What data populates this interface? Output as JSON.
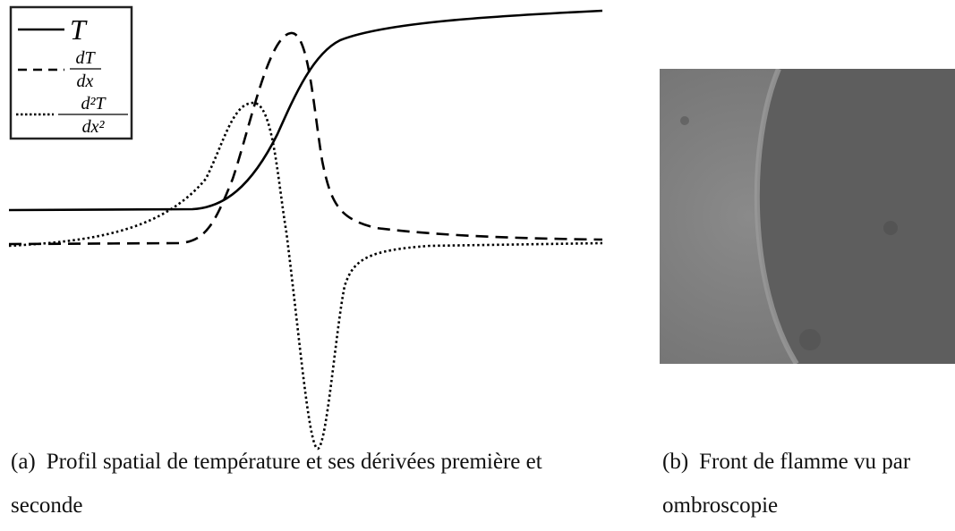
{
  "figure_a": {
    "legend": {
      "T": "T",
      "dT_num": "dT",
      "dT_den": "dx",
      "d2T_num": "d²T",
      "d2T_den": "dx²"
    },
    "caption": {
      "tag": "(a)",
      "text": "Profil spatial de température et ses dérivées première et seconde"
    }
  },
  "figure_b": {
    "caption": {
      "tag": "(b)",
      "text": "Front de flamme vu par ombroscopie"
    }
  }
}
